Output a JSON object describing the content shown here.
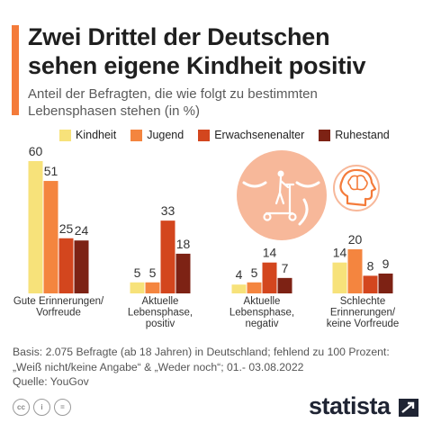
{
  "header": {
    "title_line1": "Zwei Drittel der Deutschen",
    "title_line2": "sehen eigene Kindheit positiv",
    "subtitle_line1": "Anteil der Befragten, die wie folgt zu bestimmten",
    "subtitle_line2": "Lebensphasen stehen (in %)"
  },
  "colors": {
    "accent": "#f47b3a",
    "kindheit": "#f7e27a",
    "jugend": "#f4853f",
    "erwachsenenalter": "#d3461e",
    "ruhestand": "#7d2214",
    "illustration_bg": "#f7b89a",
    "illustration_line": "#ffffff"
  },
  "chart_data": {
    "type": "bar",
    "categories": [
      [
        "Gute Erinnerungen/",
        "Vorfreude"
      ],
      [
        "Aktuelle",
        "Lebensphase,",
        "positiv"
      ],
      [
        "Aktuelle",
        "Lebensphase,",
        "negativ"
      ],
      [
        "Schlechte",
        "Erinnerungen/",
        "keine Vorfreude"
      ]
    ],
    "series": [
      {
        "name": "Kindheit",
        "values": [
          60,
          5,
          4,
          14
        ]
      },
      {
        "name": "Jugend",
        "values": [
          51,
          5,
          5,
          20
        ]
      },
      {
        "name": "Erwachsenenalter",
        "values": [
          25,
          33,
          14,
          8
        ]
      },
      {
        "name": "Ruhestand",
        "values": [
          24,
          18,
          7,
          9
        ]
      }
    ],
    "ylim": [
      0,
      60
    ],
    "legend": "top",
    "grid": false
  },
  "illustration": {
    "icons": [
      "smiling-face-icon",
      "scooter-rider-icon",
      "head-brain-icon"
    ]
  },
  "footer": {
    "basis_line1": "Basis: 2.075 Befragte (ab 18 Jahren) in Deutschland; fehlend zu 100 Prozent:",
    "basis_line2": "„Weiß nicht/keine Angabe“ & „Weder noch“; 01.- 03.08.2022",
    "source": "Quelle: YouGov",
    "license_icons": [
      "cc",
      "i",
      "="
    ],
    "brand": "statista"
  }
}
